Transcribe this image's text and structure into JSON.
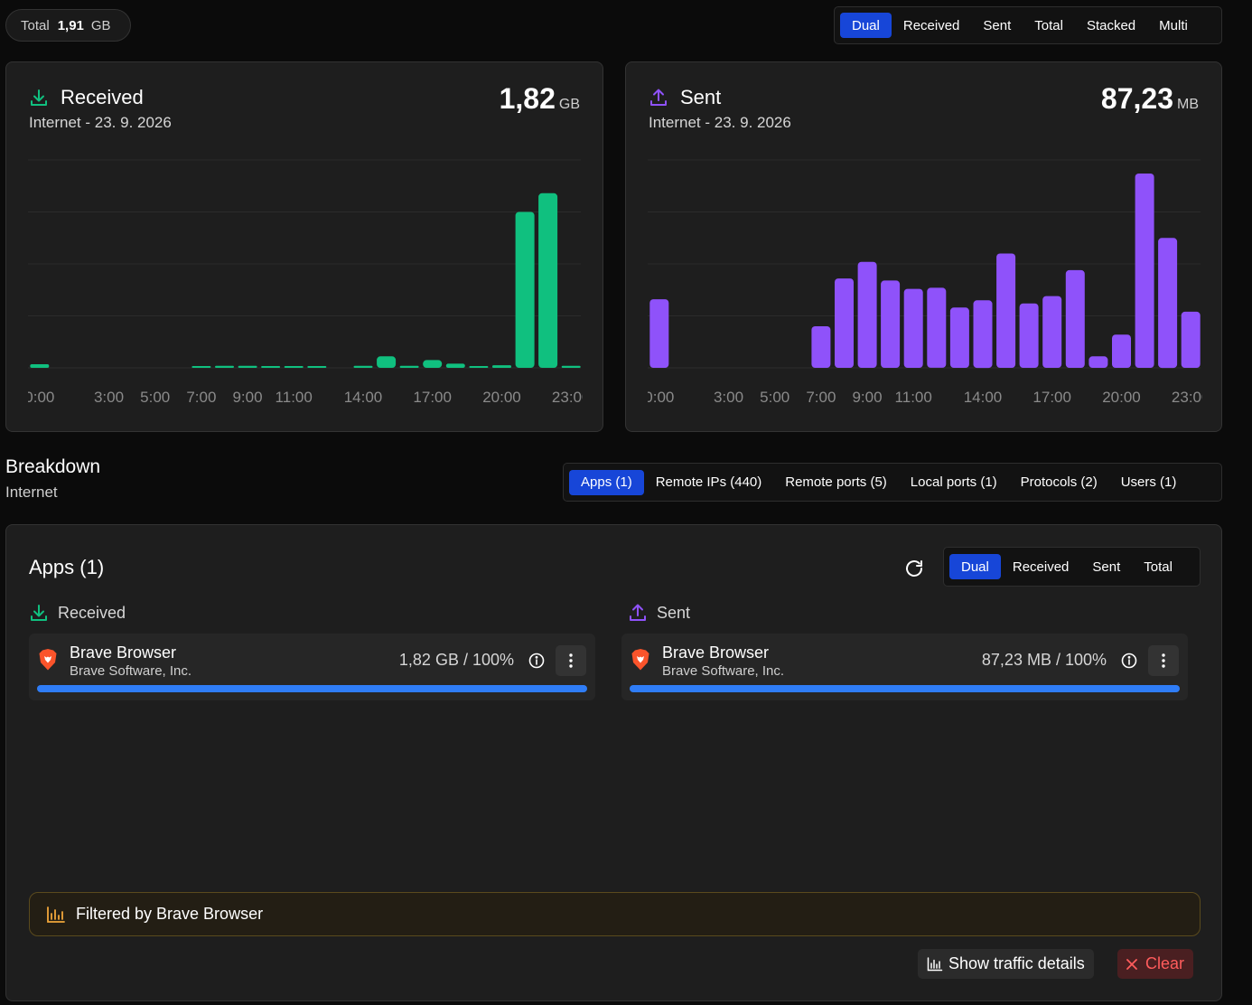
{
  "total": {
    "label": "Total",
    "value": "1,91",
    "unit": "GB"
  },
  "view_modes": [
    "Dual",
    "Received",
    "Sent",
    "Total",
    "Stacked",
    "Multi"
  ],
  "view_active": "Dual",
  "received": {
    "title": "Received",
    "subtitle": "Internet - 23. 9. 2026",
    "value": "1,82",
    "unit": "GB",
    "color": "#10c07f"
  },
  "sent": {
    "title": "Sent",
    "subtitle": "Internet - 23. 9. 2026",
    "value": "87,23",
    "unit": "MB",
    "color": "#8f52fa"
  },
  "chart_data": [
    {
      "type": "bar",
      "series_name": "Received",
      "hours": [
        0,
        1,
        2,
        3,
        4,
        5,
        6,
        7,
        8,
        9,
        10,
        11,
        12,
        13,
        14,
        15,
        16,
        17,
        18,
        19,
        20,
        21,
        22,
        23
      ],
      "x_tick_labels": [
        "0:00",
        "3:00",
        "5:00",
        "7:00",
        "9:00",
        "11:00",
        "14:00",
        "17:00",
        "20:00",
        "23:00"
      ],
      "values": [
        0.7,
        0,
        0,
        0,
        0,
        0,
        0,
        0.1,
        0.4,
        0.4,
        0.1,
        0.15,
        0.15,
        0,
        0.4,
        2.2,
        0.4,
        1.5,
        0.8,
        0.1,
        0.5,
        30,
        33.6,
        0.4
      ],
      "ylim": [
        0,
        40
      ],
      "grid": true
    },
    {
      "type": "bar",
      "series_name": "Sent",
      "hours": [
        0,
        1,
        2,
        3,
        4,
        5,
        6,
        7,
        8,
        9,
        10,
        11,
        12,
        13,
        14,
        15,
        16,
        17,
        18,
        19,
        20,
        21,
        22,
        23
      ],
      "x_tick_labels": [
        "0:00",
        "3:00",
        "5:00",
        "7:00",
        "9:00",
        "11:00",
        "14:00",
        "17:00",
        "20:00",
        "23:00"
      ],
      "values": [
        6.6,
        0,
        0,
        0,
        0,
        0,
        0,
        4.0,
        8.6,
        10.2,
        8.4,
        7.6,
        7.7,
        5.8,
        6.5,
        11.0,
        6.2,
        6.9,
        9.4,
        1.1,
        3.2,
        18.7,
        12.5,
        5.4
      ],
      "ylim": [
        0,
        20
      ],
      "grid": true
    }
  ],
  "breakdown": {
    "title": "Breakdown",
    "subtitle": "Internet",
    "tabs": [
      "Apps (1)",
      "Remote IPs (440)",
      "Remote ports (5)",
      "Local ports (1)",
      "Protocols (2)",
      "Users (1)"
    ],
    "active_tab": "Apps (1)"
  },
  "apps": {
    "title": "Apps (1)",
    "modes": [
      "Dual",
      "Received",
      "Sent",
      "Total"
    ],
    "active_mode": "Dual",
    "received_label": "Received",
    "sent_label": "Sent",
    "received_row": {
      "name": "Brave Browser",
      "vendor": "Brave Software, Inc.",
      "stat": "1,82 GB / 100%",
      "percent": 100
    },
    "sent_row": {
      "name": "Brave Browser",
      "vendor": "Brave Software, Inc.",
      "stat": "87,23 MB / 100%",
      "percent": 100
    },
    "filter_text": "Filtered by Brave Browser",
    "details_label": "Show traffic details",
    "clear_label": "Clear"
  },
  "icons": {
    "download": "download-icon",
    "upload": "upload-icon",
    "refresh": "refresh-icon",
    "info": "info-icon",
    "menu": "more-vertical-icon",
    "chart": "bar-chart-icon",
    "close": "close-icon",
    "app": "brave-lion-icon"
  }
}
